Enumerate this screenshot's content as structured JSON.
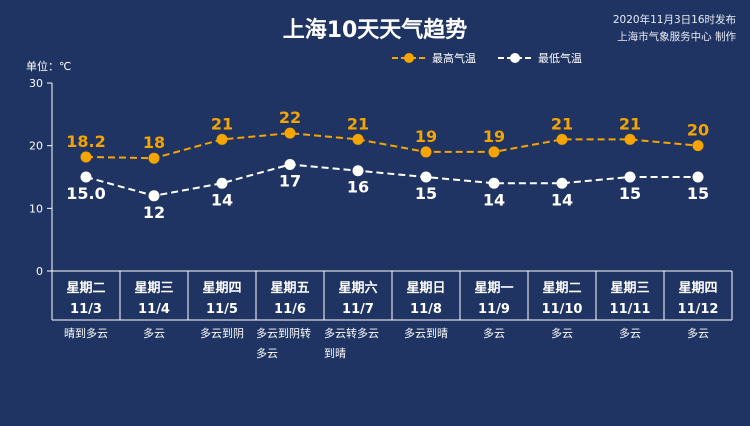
{
  "header": {
    "title": "上海10天天气趋势",
    "publish_line1": "2020年11月3日16时发布",
    "publish_line2": "上海市气象服务中心 制作",
    "unit_label": "单位：℃"
  },
  "colors": {
    "background": "#1f3463",
    "high_series": "#f5a400",
    "low_series": "#ffffff"
  },
  "chart_data": {
    "type": "line",
    "title": "上海10天天气趋势",
    "ylabel": "单位：℃",
    "ylim": [
      0,
      30
    ],
    "yticks": [
      "0",
      "10",
      "20",
      "30"
    ],
    "grid": false,
    "legend_position": "top-right",
    "x": [
      "11/3",
      "11/4",
      "11/5",
      "11/6",
      "11/7",
      "11/8",
      "11/9",
      "11/10",
      "11/11",
      "11/12"
    ],
    "weekdays": [
      "星期二",
      "星期三",
      "星期四",
      "星期五",
      "星期六",
      "星期日",
      "星期一",
      "星期二",
      "星期三",
      "星期四"
    ],
    "weather": [
      "晴到多云",
      "多云",
      "多云到阴",
      "多云到阴转多云",
      "多云转多云到晴",
      "多云到晴",
      "多云",
      "多云",
      "多云",
      "多云"
    ],
    "series": [
      {
        "name": "最高气温",
        "values": [
          18.2,
          18,
          21,
          22,
          21,
          19,
          19,
          21,
          21,
          20
        ],
        "labels": [
          "18.2",
          "18",
          "21",
          "22",
          "21",
          "19",
          "19",
          "21",
          "21",
          "20"
        ]
      },
      {
        "name": "最低气温",
        "values": [
          15.0,
          12,
          14,
          17,
          16,
          15,
          14,
          14,
          15,
          15
        ],
        "labels": [
          "15.0",
          "12",
          "14",
          "17",
          "16",
          "15",
          "14",
          "14",
          "15",
          "15"
        ]
      }
    ]
  }
}
